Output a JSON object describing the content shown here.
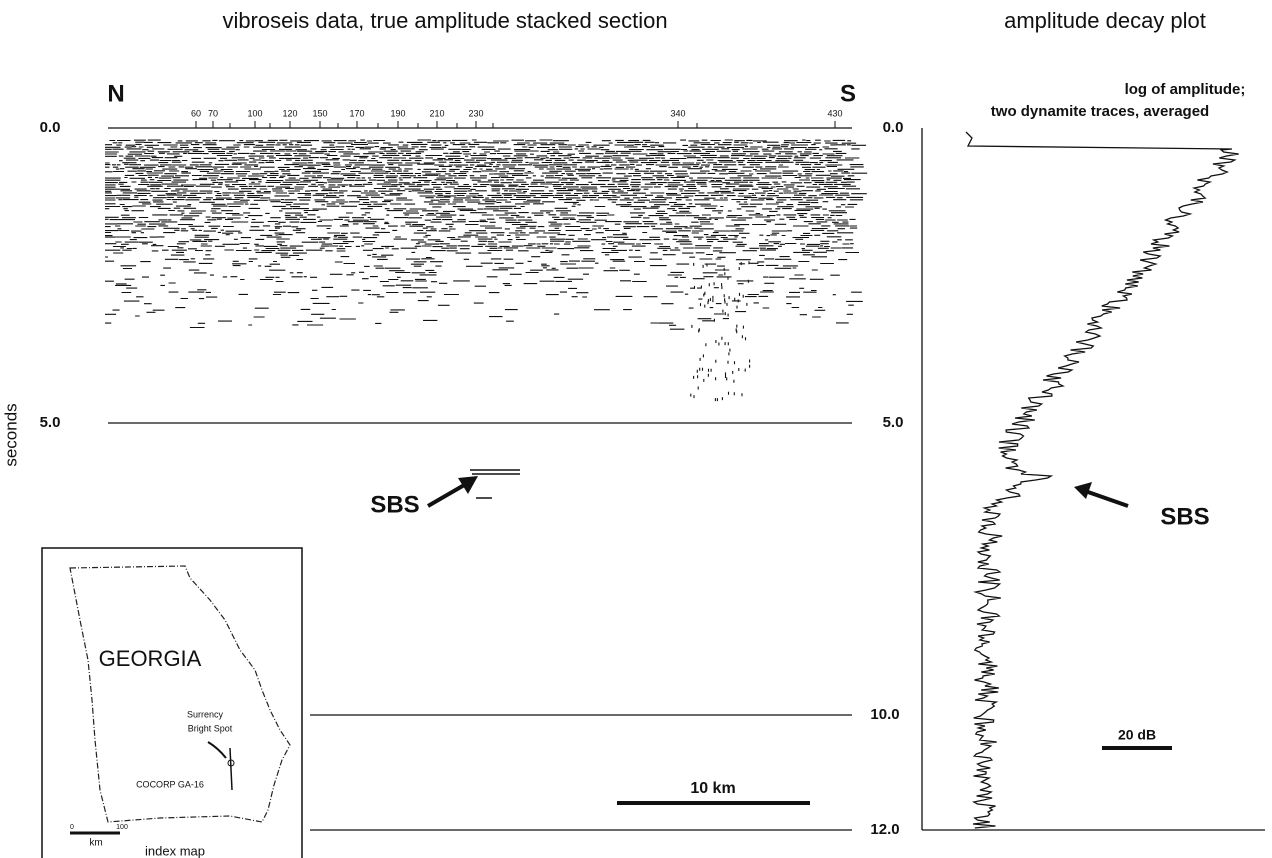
{
  "titles": {
    "section": "vibroseis data, true amplitude stacked section",
    "decay": "amplitude decay plot"
  },
  "section": {
    "north": "N",
    "south": "S",
    "stations": [
      "60",
      "70",
      "100",
      "120",
      "150",
      "170",
      "190",
      "210",
      "230",
      "340",
      "430"
    ],
    "time_left": [
      "0.0",
      "5.0"
    ],
    "time_right": [
      "10.0",
      "12.0"
    ],
    "axis_label": "seconds",
    "bright_spot": "SBS",
    "scale_bar": "10 km"
  },
  "map": {
    "state": "GEORGIA",
    "spot": [
      "Surrency",
      "Bright Spot"
    ],
    "line": "COCORP GA-16",
    "scale": [
      "0",
      "100"
    ],
    "scale_unit": "km",
    "caption": "index map"
  },
  "decay": {
    "header": [
      "log of amplitude;",
      "two dynamite traces, averaged"
    ],
    "time_labels": [
      "0.0",
      "5.0"
    ],
    "bright_spot": "SBS",
    "scale_bar": "20 dB"
  }
}
